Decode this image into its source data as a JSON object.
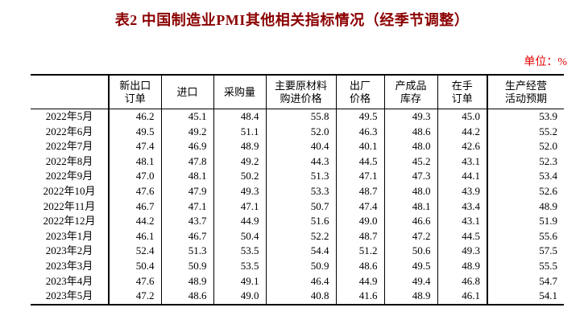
{
  "title": "表2 中国制造业PMI其他相关指标情况（经季节调整）",
  "unit_note": "单位：%",
  "colors": {
    "title": "#8B0000",
    "unit_note": "#E60000",
    "border": "#000000",
    "text": "#000000",
    "background": "#FFFFFF"
  },
  "table": {
    "headers": [
      "",
      "新出口\n订单",
      "进口",
      "采购量",
      "主要原材料\n购进价格",
      "出厂\n价格",
      "产成品\n库存",
      "在手\n订单",
      "生产经营\n活动预期"
    ],
    "rows": [
      {
        "month": "2022年5月",
        "values": [
          "46.2",
          "45.1",
          "48.4",
          "55.8",
          "49.5",
          "49.3",
          "45.0",
          "53.9"
        ]
      },
      {
        "month": "2022年6月",
        "values": [
          "49.5",
          "49.2",
          "51.1",
          "52.0",
          "46.3",
          "48.6",
          "44.2",
          "55.2"
        ]
      },
      {
        "month": "2022年7月",
        "values": [
          "47.4",
          "46.9",
          "48.9",
          "40.4",
          "40.1",
          "48.0",
          "42.6",
          "52.0"
        ]
      },
      {
        "month": "2022年8月",
        "values": [
          "48.1",
          "47.8",
          "49.2",
          "44.3",
          "44.5",
          "45.2",
          "43.1",
          "52.3"
        ]
      },
      {
        "month": "2022年9月",
        "values": [
          "47.0",
          "48.1",
          "50.2",
          "51.3",
          "47.1",
          "47.3",
          "44.1",
          "53.4"
        ]
      },
      {
        "month": "2022年10月",
        "values": [
          "47.6",
          "47.9",
          "49.3",
          "53.3",
          "48.7",
          "48.0",
          "43.9",
          "52.6"
        ]
      },
      {
        "month": "2022年11月",
        "values": [
          "46.7",
          "47.1",
          "47.1",
          "50.7",
          "47.4",
          "48.1",
          "43.4",
          "48.9"
        ]
      },
      {
        "month": "2022年12月",
        "values": [
          "44.2",
          "43.7",
          "44.9",
          "51.6",
          "49.0",
          "46.6",
          "43.1",
          "51.9"
        ]
      },
      {
        "month": "2023年1月",
        "values": [
          "46.1",
          "46.7",
          "50.4",
          "52.2",
          "48.7",
          "47.2",
          "44.5",
          "55.6"
        ]
      },
      {
        "month": "2023年2月",
        "values": [
          "52.4",
          "51.3",
          "53.5",
          "54.4",
          "51.2",
          "50.6",
          "49.3",
          "57.5"
        ]
      },
      {
        "month": "2023年3月",
        "values": [
          "50.4",
          "50.9",
          "53.5",
          "50.9",
          "48.6",
          "49.5",
          "48.9",
          "55.5"
        ]
      },
      {
        "month": "2023年4月",
        "values": [
          "47.6",
          "48.9",
          "49.1",
          "46.4",
          "44.9",
          "49.4",
          "46.8",
          "54.7"
        ]
      },
      {
        "month": "2023年5月",
        "values": [
          "47.2",
          "48.6",
          "49.0",
          "40.8",
          "41.6",
          "48.9",
          "46.1",
          "54.1"
        ]
      }
    ]
  }
}
